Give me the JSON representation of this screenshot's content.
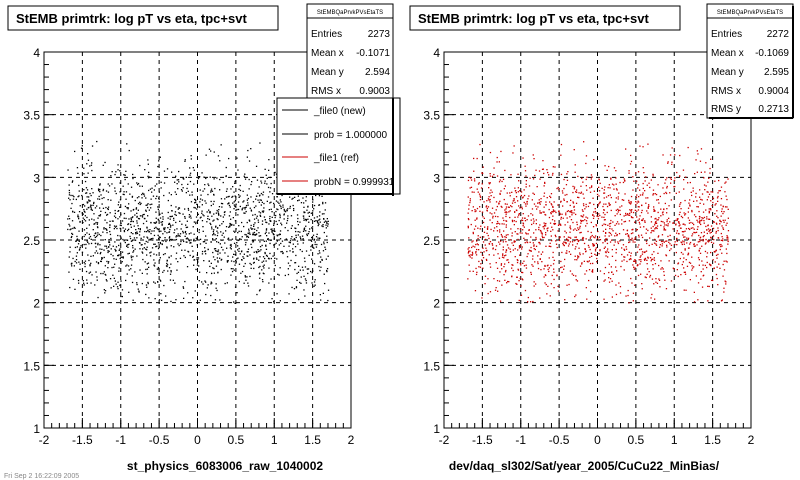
{
  "chart_data": [
    {
      "type": "scatter",
      "title": "StEMB primtrk: log pT vs eta, tpc+svt",
      "xlabel": "st_physics_6083006_raw_1040002",
      "ylabel": "",
      "xlim": [
        -2,
        2
      ],
      "ylim": [
        1,
        4
      ],
      "x_ticks": [
        "-2",
        "-1.5",
        "-1",
        "-0.5",
        "0",
        "0.5",
        "1",
        "1.5",
        "2"
      ],
      "y_ticks": [
        "1",
        "1.5",
        "2",
        "2.5",
        "3",
        "3.5",
        "4"
      ],
      "grid": true,
      "point_color": "#000000",
      "point_count": 1900,
      "stats": {
        "name": "StEMBQaPrvkPVsEtaTS",
        "rows": [
          {
            "label": "Entries",
            "value": "2273"
          },
          {
            "label": "Mean x",
            "value": "-0.1071"
          },
          {
            "label": "Mean y",
            "value": "2.594"
          },
          {
            "label": "RMS x",
            "value": "0.9003"
          }
        ]
      },
      "legend": {
        "placement": "top-right",
        "entries": [
          {
            "label": "_file0 (new)",
            "color": "#000000"
          },
          {
            "label": "prob = 1.000000",
            "color": "#000000"
          },
          {
            "label": "_file1 (ref)",
            "color": "#cc0000"
          },
          {
            "label": "probN = 0.999931",
            "color": "#cc0000"
          }
        ]
      },
      "x_summary": {
        "mean": -0.1071,
        "rms": 0.9003,
        "range": [
          -1.7,
          1.7
        ]
      },
      "y_summary": {
        "mean": 2.594,
        "rms": 0.27,
        "range": [
          2.0,
          3.3
        ]
      }
    },
    {
      "type": "scatter",
      "title": "StEMB primtrk: log pT vs eta, tpc+svt",
      "xlabel": "dev/daq_sl302/Sat/year_2005/CuCu22_MinBias/",
      "ylabel": "",
      "xlim": [
        -2,
        2
      ],
      "ylim": [
        1,
        4
      ],
      "x_ticks": [
        "-2",
        "-1.5",
        "-1",
        "-0.5",
        "0",
        "0.5",
        "1",
        "1.5",
        "2"
      ],
      "y_ticks": [
        "1",
        "1.5",
        "2",
        "2.5",
        "3",
        "3.5",
        "4"
      ],
      "grid": true,
      "point_color": "#cc0000",
      "point_count": 1900,
      "stats": {
        "name": "StEMBQaPrvkPVsEtaTS",
        "rows": [
          {
            "label": "Entries",
            "value": "2272"
          },
          {
            "label": "Mean x",
            "value": "-0.1069"
          },
          {
            "label": "Mean y",
            "value": "2.595"
          },
          {
            "label": "RMS x",
            "value": "0.9004"
          },
          {
            "label": "RMS y",
            "value": "0.2713"
          }
        ]
      },
      "legend": null,
      "x_summary": {
        "mean": -0.1069,
        "rms": 0.9004,
        "range": [
          -1.7,
          1.7
        ]
      },
      "y_summary": {
        "mean": 2.595,
        "rms": 0.2713,
        "range": [
          2.0,
          3.3
        ]
      }
    }
  ],
  "footer": {
    "timestamp": "Fri Sep  2 16:22:09 2005"
  }
}
